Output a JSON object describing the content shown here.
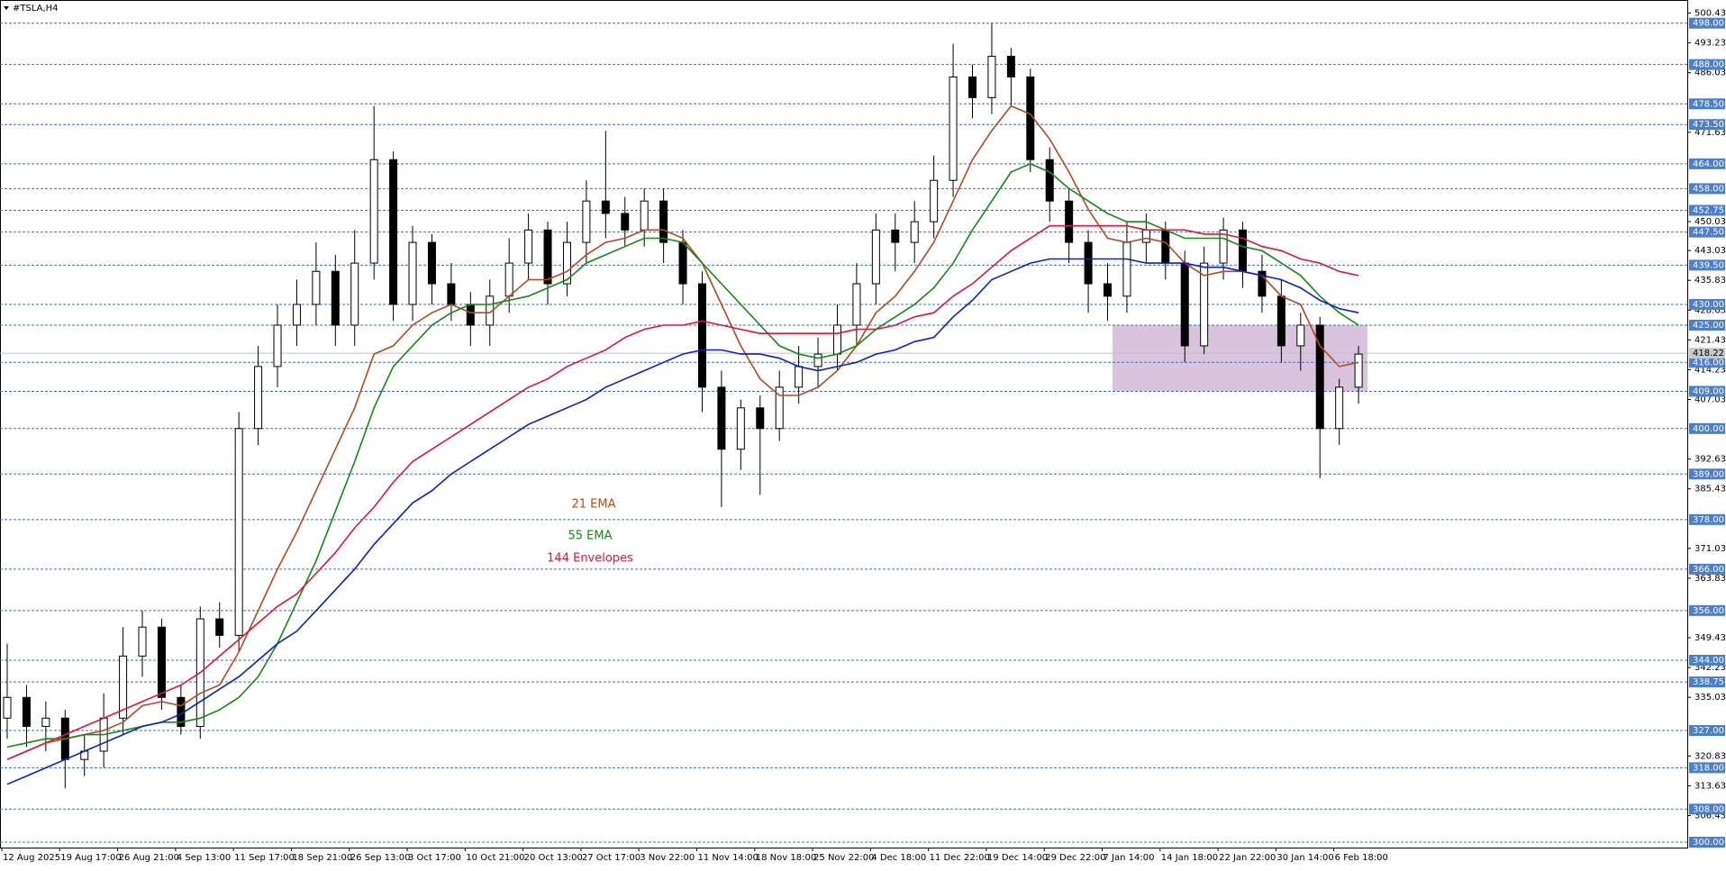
{
  "chart_data": {
    "type": "candlestick",
    "title": "#TSLA,H4",
    "categories": [
      "12 Aug 2025",
      null,
      null,
      "19 Aug 17:00",
      null,
      null,
      "26 Aug 21:00",
      null,
      null,
      "4 Sep 13:00",
      null,
      null,
      "11 Sep 17:00",
      null,
      null,
      "18 Sep 21:00",
      null,
      null,
      "26 Sep 13:00",
      null,
      null,
      "3 Oct 17:00",
      null,
      null,
      "10 Oct 21:00",
      null,
      null,
      "20 Oct 13:00",
      null,
      null,
      "27 Oct 17:00",
      null,
      null,
      "3 Nov 22:00",
      null,
      null,
      "11 Nov 14:00",
      null,
      null,
      "18 Nov 18:00",
      null,
      null,
      "25 Nov 22:00",
      null,
      null,
      "4 Dec 18:00",
      null,
      null,
      "11 Dec 22:00",
      null,
      null,
      "19 Dec 14:00",
      null,
      null,
      "29 Dec 22:00",
      null,
      null,
      "7 Jan 14:00",
      null,
      null,
      "14 Jan 18:00",
      null,
      null,
      "22 Jan 22:00",
      null,
      null,
      "30 Jan 14:00",
      null,
      null,
      "6 Feb 18:00",
      null
    ],
    "open": [
      330,
      335,
      328,
      330,
      320,
      322,
      330,
      345,
      352,
      335,
      328,
      354,
      350,
      400,
      415,
      425,
      430,
      438,
      425,
      440,
      465,
      430,
      445,
      435,
      430,
      425,
      432,
      440,
      448,
      435,
      445,
      455,
      452,
      448,
      455,
      445,
      435,
      410,
      395,
      405,
      400,
      410,
      415,
      418,
      425,
      435,
      448,
      445,
      450,
      460,
      485,
      480,
      490,
      485,
      465,
      455,
      445,
      435,
      432,
      445,
      448,
      440,
      420,
      440,
      448,
      438,
      432,
      420,
      425,
      400,
      410
    ],
    "high": [
      348,
      338,
      334,
      332,
      326,
      336,
      352,
      356,
      354,
      338,
      357,
      358,
      404,
      420,
      430,
      436,
      445,
      442,
      448,
      478,
      467,
      449,
      447,
      440,
      433,
      436,
      446,
      452,
      450,
      450,
      460,
      472,
      456,
      458,
      458,
      448,
      438,
      414,
      407,
      408,
      414,
      420,
      422,
      430,
      440,
      452,
      452,
      455,
      466,
      493,
      488,
      498,
      492,
      487,
      468,
      458,
      448,
      440,
      450,
      452,
      450,
      443,
      444,
      451,
      450,
      442,
      436,
      428,
      427,
      412,
      420
    ],
    "low": [
      325,
      323,
      322,
      313,
      316,
      318,
      326,
      340,
      332,
      326,
      325,
      347,
      346,
      396,
      410,
      420,
      425,
      420,
      420,
      436,
      426,
      426,
      430,
      426,
      420,
      420,
      428,
      436,
      430,
      432,
      440,
      446,
      444,
      444,
      440,
      430,
      404,
      381,
      390,
      384,
      397,
      406,
      410,
      414,
      420,
      430,
      438,
      440,
      446,
      456,
      475,
      476,
      478,
      462,
      450,
      440,
      428,
      426,
      428,
      440,
      436,
      416,
      418,
      436,
      434,
      428,
      416,
      414,
      388,
      396,
      406
    ],
    "close": [
      335,
      328,
      330,
      320,
      322,
      330,
      345,
      352,
      335,
      328,
      354,
      350,
      400,
      415,
      425,
      430,
      438,
      425,
      440,
      465,
      430,
      445,
      435,
      430,
      425,
      432,
      440,
      448,
      435,
      445,
      455,
      452,
      448,
      455,
      445,
      435,
      410,
      395,
      405,
      400,
      410,
      415,
      418,
      425,
      435,
      448,
      445,
      450,
      460,
      485,
      480,
      490,
      485,
      465,
      455,
      445,
      435,
      432,
      445,
      448,
      440,
      420,
      440,
      448,
      438,
      432,
      420,
      425,
      400,
      410,
      418
    ],
    "series": [
      {
        "name": "21 EMA",
        "color": "#b5491f",
        "values": [
          320,
          322,
          324,
          325,
          326,
          327,
          329,
          333,
          334,
          333,
          336,
          338,
          346,
          356,
          366,
          375,
          385,
          395,
          405,
          418,
          420,
          425,
          428,
          430,
          428,
          428,
          432,
          436,
          436,
          438,
          442,
          445,
          446,
          448,
          448,
          446,
          440,
          430,
          420,
          412,
          408,
          408,
          410,
          414,
          420,
          428,
          432,
          438,
          445,
          455,
          465,
          472,
          478,
          476,
          470,
          462,
          453,
          446,
          445,
          446,
          445,
          440,
          437,
          438,
          438,
          437,
          432,
          430,
          420,
          415,
          416
        ]
      },
      {
        "name": "55 EMA",
        "color": "#138a13",
        "values": [
          323,
          324,
          325,
          325,
          326,
          326,
          327,
          328,
          329,
          329,
          330,
          332,
          335,
          340,
          348,
          358,
          368,
          380,
          392,
          405,
          415,
          420,
          425,
          428,
          430,
          430,
          431,
          432,
          434,
          436,
          440,
          442,
          444,
          446,
          446,
          445,
          440,
          435,
          430,
          425,
          420,
          418,
          417,
          418,
          420,
          424,
          427,
          430,
          434,
          440,
          448,
          455,
          462,
          464,
          462,
          458,
          455,
          452,
          450,
          450,
          448,
          446,
          446,
          446,
          444,
          443,
          440,
          437,
          432,
          428,
          425
        ]
      },
      {
        "name": "144 Envelopes",
        "color": "#e0143c",
        "values": [
          320,
          322,
          324,
          326,
          328,
          330,
          332,
          334,
          336,
          338,
          341,
          345,
          349,
          353,
          357,
          360,
          365,
          370,
          376,
          381,
          387,
          392,
          395,
          398,
          401,
          404,
          407,
          410,
          412,
          415,
          417,
          419,
          422,
          424,
          425,
          425,
          426,
          425,
          424,
          423,
          423,
          423,
          423,
          423,
          424,
          424,
          425,
          427,
          428,
          432,
          435,
          439,
          443,
          446,
          449,
          449,
          449,
          449,
          449,
          448,
          448,
          448,
          447,
          447,
          446,
          444,
          443,
          441,
          440,
          438,
          437
        ]
      },
      {
        "color": "#0a1ed2",
        "values": [
          314,
          316,
          318,
          320,
          322,
          324,
          326,
          328,
          329,
          331,
          334,
          337,
          340,
          344,
          348,
          351,
          356,
          361,
          366,
          372,
          377,
          382,
          385,
          389,
          392,
          395,
          398,
          401,
          403,
          405,
          407,
          410,
          412,
          414,
          416,
          418,
          419,
          419,
          418,
          418,
          417,
          415,
          414,
          415,
          416,
          418,
          419,
          421,
          422,
          427,
          431,
          436,
          438,
          440,
          441,
          441,
          441,
          441,
          441,
          440,
          440,
          440,
          439,
          439,
          438,
          437,
          436,
          434,
          431,
          429,
          428
        ]
      }
    ],
    "ylim": [
      298.7,
      503.6
    ],
    "yticks": [
      500.43,
      493.23,
      486.03,
      471.63,
      450.03,
      443.03,
      435.83,
      428.63,
      421.43,
      414.23,
      407.03,
      392.63,
      385.43,
      371.03,
      363.83,
      349.43,
      342.23,
      335.03,
      320.83,
      313.63,
      306.43
    ],
    "levels": [
      {
        "value": 498,
        "label": "498.00"
      },
      {
        "value": 488,
        "label": "488.00"
      },
      {
        "value": 478.5,
        "label": "478.50"
      },
      {
        "value": 473.5,
        "label": "473.50"
      },
      {
        "value": 464,
        "label": "464.00"
      },
      {
        "value": 458,
        "label": "458.00"
      },
      {
        "value": 452.75,
        "label": "452.75"
      },
      {
        "value": 447.5,
        "label": "447.50"
      },
      {
        "value": 439.5,
        "label": "439.50"
      },
      {
        "value": 430,
        "label": "430.00"
      },
      {
        "value": 425,
        "label": "425.00"
      },
      {
        "value": 416,
        "label": "416.00"
      },
      {
        "value": 409,
        "label": "409.00"
      },
      {
        "value": 400,
        "label": "400.00"
      },
      {
        "value": 389,
        "label": "389.00"
      },
      {
        "value": 378,
        "label": "378.00"
      },
      {
        "value": 366,
        "label": "366.00"
      },
      {
        "value": 356,
        "label": "356.00"
      },
      {
        "value": 344,
        "label": "344.00"
      },
      {
        "value": 338.75,
        "label": "338.75"
      },
      {
        "value": 327,
        "label": "327.00"
      },
      {
        "value": 318,
        "label": "318.00"
      },
      {
        "value": 308,
        "label": "308.00"
      },
      {
        "value": 300,
        "label": "300.00"
      }
    ],
    "last_price": 418.22,
    "zone": {
      "low": 409,
      "high": 425,
      "color": "#d6bcd9"
    }
  }
}
